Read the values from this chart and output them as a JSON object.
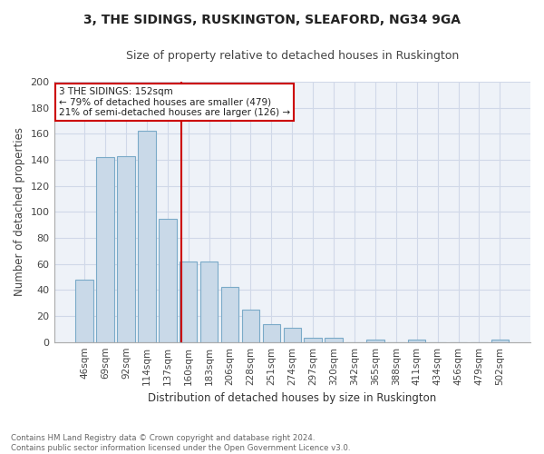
{
  "title1": "3, THE SIDINGS, RUSKINGTON, SLEAFORD, NG34 9GA",
  "title2": "Size of property relative to detached houses in Ruskington",
  "xlabel": "Distribution of detached houses by size in Ruskington",
  "ylabel": "Number of detached properties",
  "bar_labels": [
    "46sqm",
    "69sqm",
    "92sqm",
    "114sqm",
    "137sqm",
    "160sqm",
    "183sqm",
    "206sqm",
    "228sqm",
    "251sqm",
    "274sqm",
    "297sqm",
    "320sqm",
    "342sqm",
    "365sqm",
    "388sqm",
    "411sqm",
    "434sqm",
    "456sqm",
    "479sqm",
    "502sqm"
  ],
  "bar_values": [
    48,
    142,
    143,
    162,
    95,
    62,
    62,
    42,
    25,
    14,
    11,
    3,
    3,
    0,
    2,
    0,
    2,
    0,
    0,
    0,
    2
  ],
  "bar_color": "#c9d9e8",
  "bar_edge_color": "#7aaac8",
  "grid_color": "#d0d8e8",
  "background_color": "#eef2f8",
  "vline_color": "#cc0000",
  "annotation_text": "3 THE SIDINGS: 152sqm\n← 79% of detached houses are smaller (479)\n21% of semi-detached houses are larger (126) →",
  "annotation_box_color": "#ffffff",
  "annotation_box_edge": "#cc0000",
  "footnote": "Contains HM Land Registry data © Crown copyright and database right 2024.\nContains public sector information licensed under the Open Government Licence v3.0.",
  "ylim": [
    0,
    200
  ],
  "yticks": [
    0,
    20,
    40,
    60,
    80,
    100,
    120,
    140,
    160,
    180,
    200
  ]
}
